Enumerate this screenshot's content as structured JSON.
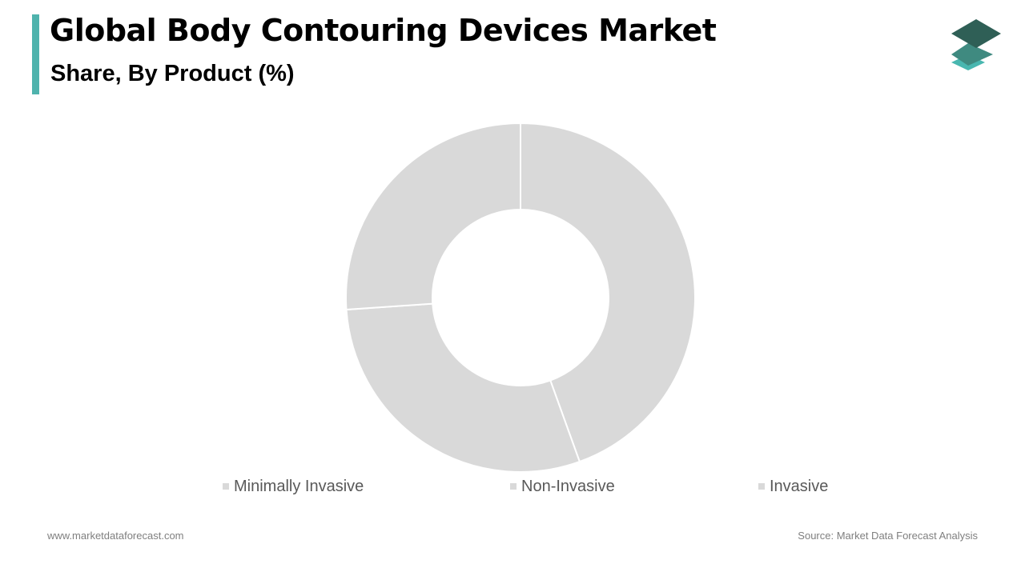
{
  "header": {
    "title": "Global Body Contouring Devices Market",
    "subtitle": "Share, By Product (%)"
  },
  "brand": {
    "accent_color": "#4fb3ad",
    "logo_icon": "stacked-layers-icon",
    "logo_colors": [
      "#2f5f56",
      "#3f8a80",
      "#49b7b0"
    ]
  },
  "chart_data": {
    "type": "pie",
    "variant": "donut",
    "categories": [
      "Minimally Invasive",
      "Non-Invasive",
      "Invasive"
    ],
    "values": [
      44.5,
      29.4,
      26.1
    ],
    "unit": "%",
    "colors": [
      "#d9d9d9",
      "#d9d9d9",
      "#d9d9d9"
    ],
    "separator_color": "#ffffff",
    "legend_position": "bottom",
    "start_angle_deg": 0,
    "direction": "clockwise"
  },
  "footer": {
    "website": "www.marketdataforecast.com",
    "source": "Source: Market Data Forecast Analysis"
  }
}
